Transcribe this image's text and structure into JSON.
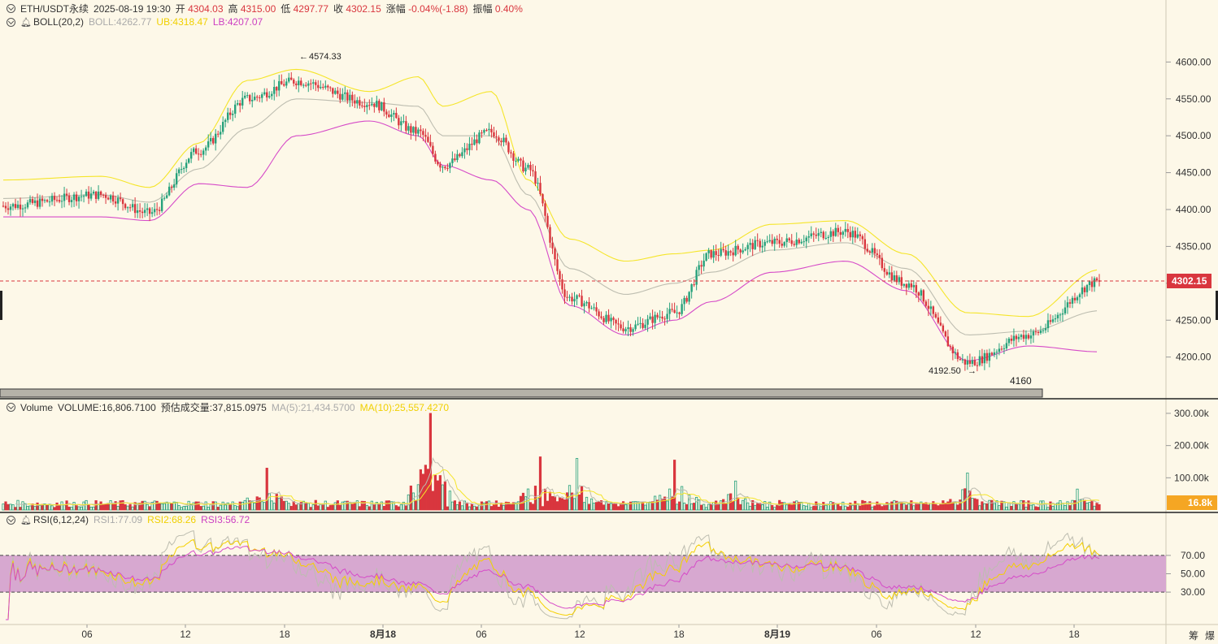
{
  "header": {
    "symbol": "ETH/USDT永续",
    "datetime": "2025-08-19 19:30",
    "open_label": "开",
    "open": "4304.03",
    "high_label": "高",
    "high": "4315.00",
    "low_label": "低",
    "low": "4297.77",
    "close_label": "收",
    "close": "4302.15",
    "change_label": "涨幅",
    "change": "-0.04%(-1.88)",
    "amplitude_label": "振幅",
    "amplitude": "0.40%"
  },
  "boll": {
    "name": "BOLL(20,2)",
    "mid": "BOLL:4262.77",
    "ub": "UB:4318.47",
    "lb": "LB:4207.07"
  },
  "volume": {
    "name": "Volume",
    "value": "VOLUME:16,806.7100",
    "estimate": "预估成交量:37,815.0975",
    "ma5": "MA(5):21,434.5700",
    "ma10": "MA(10):25,557.4270",
    "current_tag": "16.8k"
  },
  "rsi": {
    "name": "RSI(6,12,24)",
    "rsi1": "RSI1:77.09",
    "rsi2": "RSI2:68.26",
    "rsi3": "RSI3:56.72"
  },
  "annotations": {
    "high_marker": "4574.33",
    "low_marker": "4192.50",
    "tooltip": "4160",
    "last_price": "4302.15"
  },
  "bottom_right": {
    "a": "筹",
    "b": "爆"
  },
  "colors": {
    "up": "#26a17b",
    "down": "#d9363e",
    "ub": "#f5e52a",
    "lb": "#d64bc8",
    "mid": "#bdbdb0",
    "rsi1": "#bdbdb0",
    "rsi2": "#f5d000",
    "rsi3": "#d64bc8",
    "band": "#d7a8d0"
  },
  "chart_data": [
    {
      "type": "candlestick",
      "title": "ETH/USDT永续",
      "y_ticks": [
        4200,
        4250,
        4300,
        4350,
        4400,
        4450,
        4500,
        4550,
        4600
      ],
      "ylim": [
        4160,
        4640
      ],
      "x_ticks": [
        "06",
        "12",
        "18",
        "8月18",
        "06",
        "12",
        "18",
        "8月19",
        "06",
        "12",
        "18"
      ],
      "key_points": [
        {
          "t": 0,
          "price": 4405
        },
        {
          "t": 40,
          "price": 4420
        },
        {
          "t": 60,
          "price": 4395
        },
        {
          "t": 80,
          "price": 4480
        },
        {
          "t": 100,
          "price": 4550
        },
        {
          "t": 120,
          "price": 4574.33
        },
        {
          "t": 150,
          "price": 4545
        },
        {
          "t": 170,
          "price": 4505
        },
        {
          "t": 180,
          "price": 4460
        },
        {
          "t": 200,
          "price": 4505
        },
        {
          "t": 215,
          "price": 4455
        },
        {
          "t": 232,
          "price": 4280
        },
        {
          "t": 255,
          "price": 4240
        },
        {
          "t": 275,
          "price": 4260
        },
        {
          "t": 290,
          "price": 4340
        },
        {
          "t": 315,
          "price": 4355
        },
        {
          "t": 345,
          "price": 4370
        },
        {
          "t": 370,
          "price": 4300
        },
        {
          "t": 395,
          "price": 4192.5
        },
        {
          "t": 420,
          "price": 4230
        },
        {
          "t": 449,
          "price": 4302.15
        }
      ],
      "boll_ub_key": [
        4440,
        4445,
        4430,
        4490,
        4575,
        4590,
        4560,
        4580,
        4540,
        4560,
        4440,
        4360,
        4330,
        4340,
        4345,
        4380,
        4385,
        4340,
        4260,
        4255,
        4318.47
      ],
      "boll_mid_key": [
        4415,
        4420,
        4410,
        4455,
        4510,
        4550,
        4545,
        4540,
        4500,
        4500,
        4420,
        4320,
        4285,
        4300,
        4315,
        4345,
        4355,
        4320,
        4230,
        4235,
        4262.77
      ],
      "boll_lb_key": [
        4390,
        4390,
        4385,
        4435,
        4430,
        4500,
        4520,
        4500,
        4460,
        4440,
        4400,
        4270,
        4230,
        4250,
        4275,
        4315,
        4330,
        4290,
        4195,
        4215,
        4207.07
      ]
    },
    {
      "type": "bar",
      "title": "Volume",
      "y_ticks": [
        "300.00k",
        "200.00k",
        "100.00k"
      ],
      "ylim": [
        0,
        310000
      ],
      "spikes": [
        {
          "t": 108,
          "value": 130000
        },
        {
          "t": 175,
          "value": 300000
        },
        {
          "t": 220,
          "value": 165000
        },
        {
          "t": 235,
          "value": 160000
        },
        {
          "t": 275,
          "value": 155000
        },
        {
          "t": 300,
          "value": 90000
        },
        {
          "t": 395,
          "value": 115000
        },
        {
          "t": 440,
          "value": 65000
        }
      ],
      "last_value": 16806.71
    },
    {
      "type": "line",
      "title": "RSI(6,12,24)",
      "y_ticks": [
        70,
        50,
        30
      ],
      "ylim": [
        0,
        100
      ],
      "band": [
        30,
        70
      ],
      "series": [
        {
          "name": "RSI1",
          "last": 77.09
        },
        {
          "name": "RSI2",
          "last": 68.26
        },
        {
          "name": "RSI3",
          "last": 56.72
        }
      ]
    }
  ]
}
